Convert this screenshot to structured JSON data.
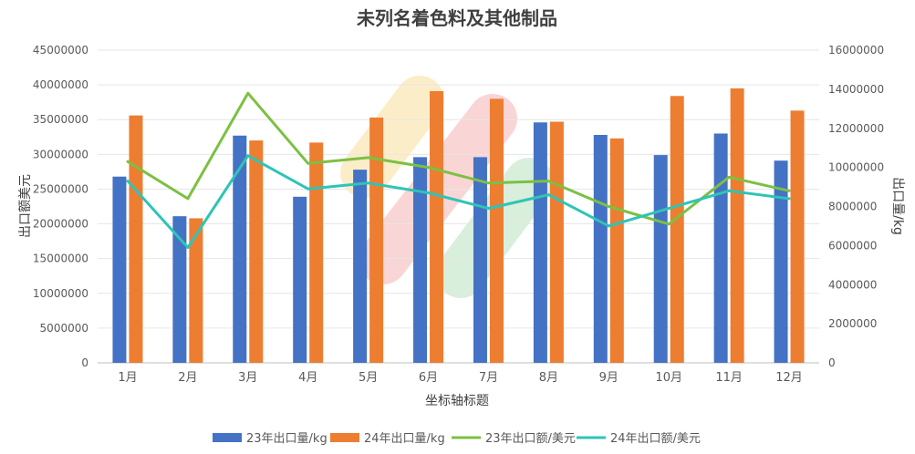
{
  "chart_data": {
    "type": "bar+line",
    "title": "未列名着色料及其他制品",
    "xlabel": "坐标轴标题",
    "ylabel_left": "出口额美元",
    "ylabel_right": "出口量/kg",
    "categories": [
      "1月",
      "2月",
      "3月",
      "4月",
      "5月",
      "6月",
      "7月",
      "8月",
      "9月",
      "10月",
      "11月",
      "12月"
    ],
    "y_left": {
      "min": 0,
      "max": 45000000,
      "step": 5000000,
      "ticks": [
        "0",
        "5000000",
        "10000000",
        "15000000",
        "20000000",
        "25000000",
        "30000000",
        "35000000",
        "40000000",
        "45000000"
      ]
    },
    "y_right": {
      "min": 0,
      "max": 16000000,
      "step": 2000000,
      "ticks": [
        "0",
        "2000000",
        "4000000",
        "6000000",
        "8000000",
        "10000000",
        "12000000",
        "14000000",
        "16000000"
      ]
    },
    "series": [
      {
        "name": "23年出口量/kg",
        "type": "bar",
        "axis": "left",
        "color": "#4472C4",
        "values": [
          26800000,
          21100000,
          32700000,
          23900000,
          27800000,
          29600000,
          29600000,
          34600000,
          32800000,
          29900000,
          33000000,
          29100000
        ]
      },
      {
        "name": "24年出口量/kg",
        "type": "bar",
        "axis": "left",
        "color": "#ED7D31",
        "values": [
          35600000,
          20800000,
          32000000,
          31700000,
          35300000,
          39100000,
          38000000,
          34700000,
          32300000,
          38400000,
          39500000,
          36300000
        ]
      },
      {
        "name": "23年出口额/美元",
        "type": "line",
        "axis": "right",
        "color": "#7CC043",
        "values": [
          10300000,
          8400000,
          13800000,
          10200000,
          10500000,
          10000000,
          9200000,
          9300000,
          8000000,
          7100000,
          9500000,
          8800000
        ]
      },
      {
        "name": "24年出口额/美元",
        "type": "line",
        "axis": "right",
        "color": "#2EC4B6",
        "values": [
          9300000,
          5900000,
          10600000,
          8900000,
          9200000,
          8700000,
          7900000,
          8600000,
          7000000,
          7900000,
          8800000,
          8400000
        ]
      }
    ],
    "legend": "bottom",
    "grid": true
  }
}
